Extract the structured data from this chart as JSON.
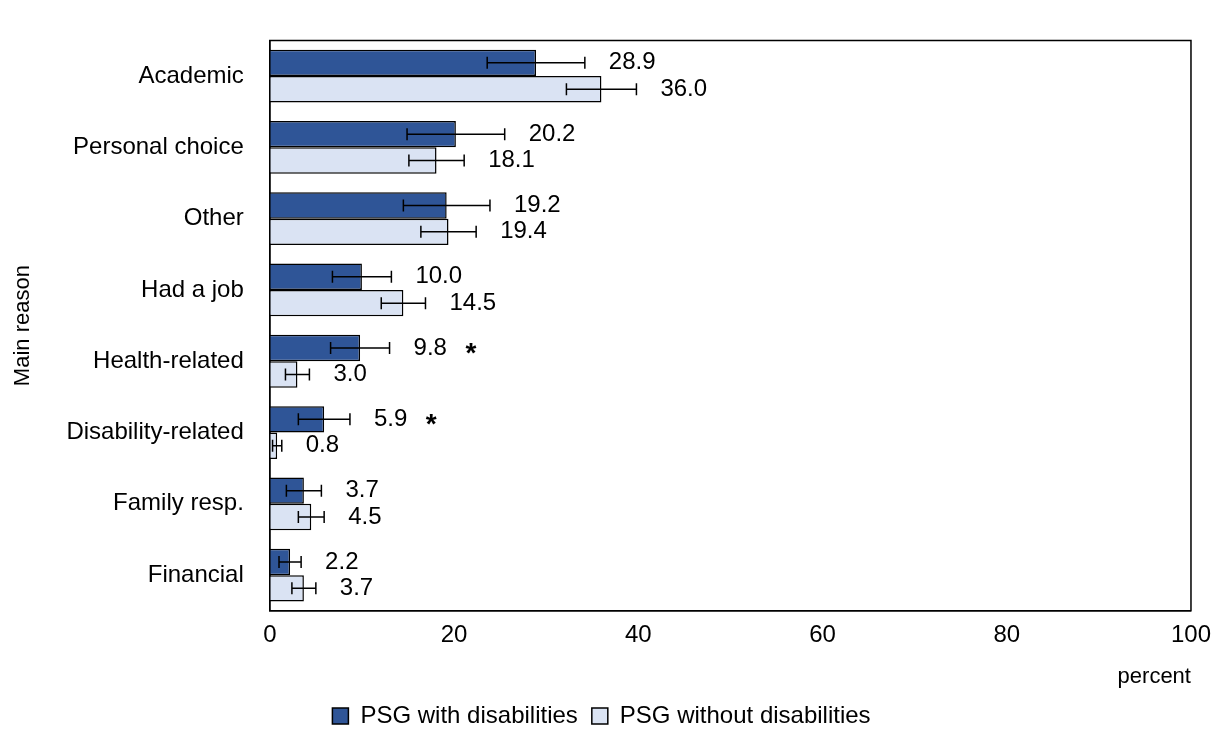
{
  "chart_data": {
    "type": "bar",
    "orientation": "horizontal",
    "xlabel": "percent",
    "ylabel": "Main reason",
    "categories": [
      "Academic",
      "Personal choice",
      "Other",
      "Had a job",
      "Health-related",
      "Disability-related",
      "Family resp.",
      "Financial"
    ],
    "series": [
      {
        "name": "PSG with disabilities",
        "color": "#2f5597",
        "values": [
          28.9,
          20.2,
          19.2,
          10.0,
          9.8,
          5.9,
          3.7,
          2.2
        ],
        "value_labels": [
          "28.9",
          "20.2",
          "19.2",
          "10.0",
          "9.8",
          "5.9",
          "3.7",
          "2.2"
        ],
        "errors": [
          5.3,
          5.3,
          4.7,
          3.2,
          3.2,
          2.8,
          1.9,
          1.2
        ]
      },
      {
        "name": "PSG without disabilities",
        "color": "#dae3f3",
        "values": [
          36.0,
          18.1,
          19.4,
          14.5,
          3.0,
          0.8,
          4.5,
          3.7
        ],
        "value_labels": [
          "36.0",
          "18.1",
          "19.4",
          "14.5",
          "3.0",
          "0.8",
          "4.5",
          "3.7"
        ],
        "errors": [
          3.8,
          3.0,
          3.0,
          2.4,
          1.3,
          0.5,
          1.4,
          1.3
        ]
      }
    ],
    "xlim": [
      0,
      100
    ],
    "xticks": [
      0,
      20,
      40,
      60,
      80,
      100
    ],
    "grid": false,
    "legend": "bottom",
    "annotations": [
      "*",
      "*"
    ]
  }
}
